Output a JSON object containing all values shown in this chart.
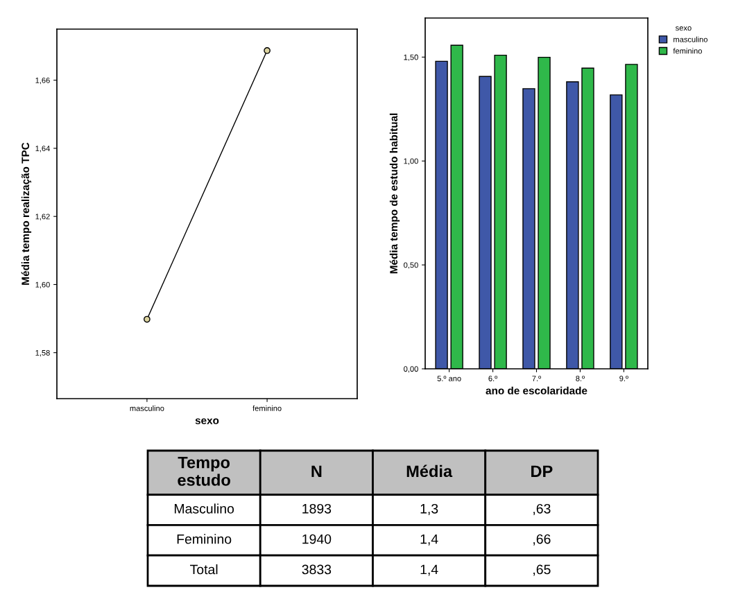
{
  "chart_data": [
    {
      "type": "line",
      "xlabel": "sexo",
      "ylabel": "Média tempo realização TPC",
      "categories": [
        "masculino",
        "feminino"
      ],
      "series": [
        {
          "color": "#000000",
          "values": [
            1.5898,
            1.6687
          ]
        }
      ],
      "marker": "circle",
      "ylim": [
        1.5665,
        1.675
      ],
      "yticks": [
        {
          "value": 1.58,
          "label": "1,58"
        },
        {
          "value": 1.6,
          "label": "1,60"
        },
        {
          "value": 1.62,
          "label": "1,62"
        },
        {
          "value": 1.64,
          "label": "1,64"
        },
        {
          "value": 1.66,
          "label": "1,66"
        }
      ],
      "grid": false,
      "legend": false
    },
    {
      "type": "bar",
      "xlabel": "ano de escolaridade",
      "ylabel": "Média tempo de estudo habitual",
      "legend_title": "sexo",
      "categories": [
        "5.º ano",
        "6.º",
        "7.º",
        "8.º",
        "9.º"
      ],
      "series": [
        {
          "name": "masculino",
          "color": "#3f58a8",
          "values": [
            1.48,
            1.407,
            1.348,
            1.381,
            1.318
          ]
        },
        {
          "name": "feminino",
          "color": "#2fb84a",
          "values": [
            1.557,
            1.509,
            1.499,
            1.447,
            1.465
          ]
        }
      ],
      "ylim": [
        0,
        1.688
      ],
      "yticks": [
        {
          "value": 0,
          "label": "0,00"
        },
        {
          "value": 0.5,
          "label": "0,50"
        },
        {
          "value": 1.0,
          "label": "1,00"
        },
        {
          "value": 1.5,
          "label": "1,50"
        }
      ],
      "grid": false,
      "legend": "top right"
    },
    {
      "type": "other",
      "categories": [
        "Tempo\nestudo",
        "N",
        "Média",
        "DP"
      ],
      "annotations": [
        "Masculino",
        "1893",
        "1,3",
        ",63",
        "Feminino",
        "1940",
        "1,4",
        ",66",
        "Total",
        "3833",
        "1,4",
        ",65"
      ]
    }
  ]
}
